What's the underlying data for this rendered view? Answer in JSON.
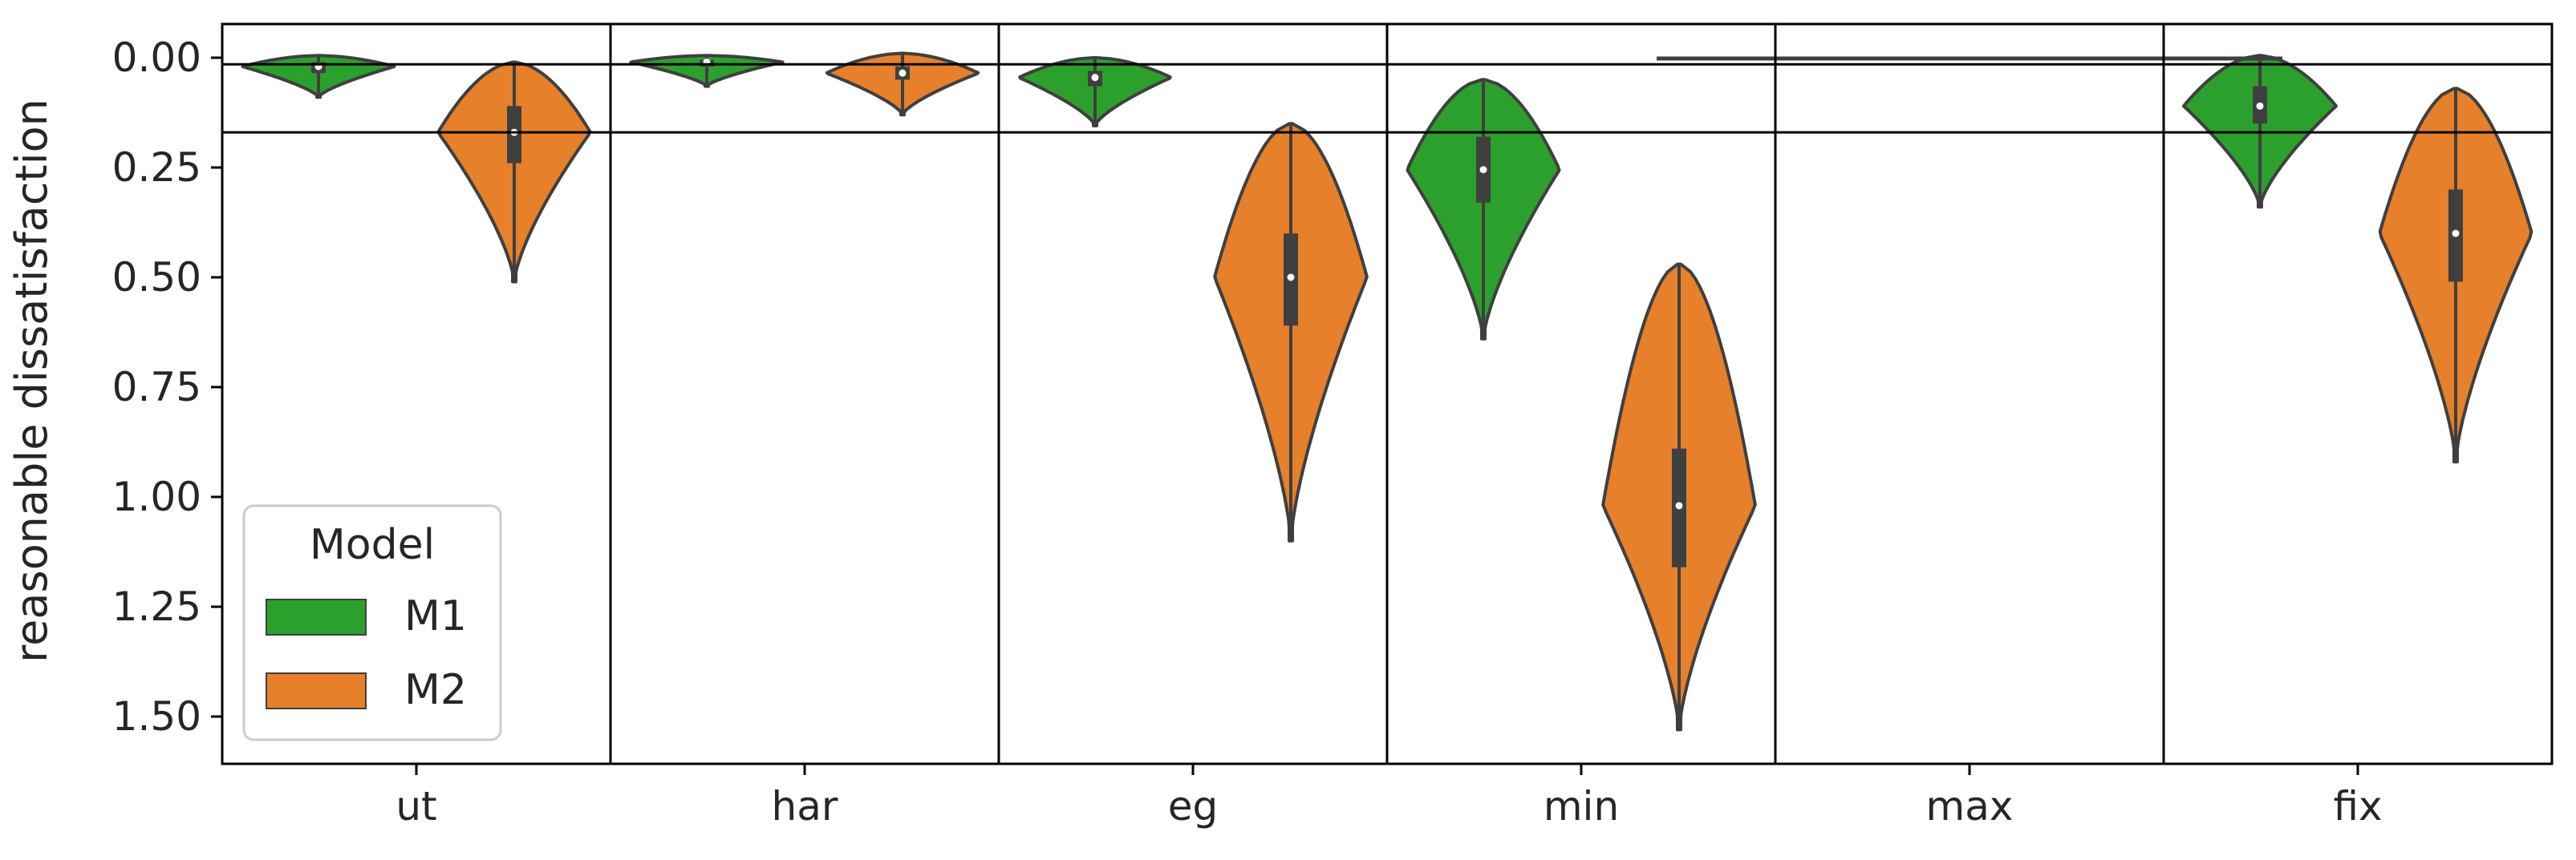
{
  "chart_data": {
    "type": "violin",
    "title": "",
    "xlabel": "",
    "ylabel": "reasonable dissatisfaction",
    "y_inverted": true,
    "ylim": [
      1.6,
      -0.07
    ],
    "y_ticks": [
      "0.00",
      "0.25",
      "0.50",
      "0.75",
      "1.00",
      "1.25",
      "1.50"
    ],
    "categories": [
      "ut",
      "har",
      "eg",
      "min",
      "max",
      "fix"
    ],
    "reference_lines": [
      0.015,
      0.17
    ],
    "legend": {
      "title": "Model",
      "placement": "lower-left"
    },
    "series": [
      {
        "name": "M1",
        "color": "#2ca02c",
        "violins": [
          {
            "min": -0.005,
            "max": 0.09,
            "q1": 0.01,
            "median": 0.02,
            "q3": 0.035
          },
          {
            "min": -0.005,
            "max": 0.065,
            "q1": 0.005,
            "median": 0.01,
            "q3": 0.02
          },
          {
            "min": 0.0,
            "max": 0.155,
            "q1": 0.03,
            "median": 0.045,
            "q3": 0.065
          },
          {
            "min": 0.05,
            "max": 0.64,
            "q1": 0.18,
            "median": 0.255,
            "q3": 0.33
          },
          {
            "min": 0.0,
            "max": 0.0,
            "q1": 0.0,
            "median": 0.0,
            "q3": 0.0
          },
          {
            "min": -0.005,
            "max": 0.34,
            "q1": 0.065,
            "median": 0.11,
            "q3": 0.15
          }
        ]
      },
      {
        "name": "M2",
        "color": "#e6802b",
        "violins": [
          {
            "min": 0.01,
            "max": 0.51,
            "q1": 0.11,
            "median": 0.17,
            "q3": 0.24
          },
          {
            "min": -0.01,
            "max": 0.13,
            "q1": 0.02,
            "median": 0.035,
            "q3": 0.05
          },
          {
            "min": 0.15,
            "max": 1.1,
            "q1": 0.4,
            "median": 0.5,
            "q3": 0.61
          },
          {
            "min": 0.47,
            "max": 1.53,
            "q1": 0.89,
            "median": 1.02,
            "q3": 1.16
          },
          {
            "min": 0.0,
            "max": 0.0,
            "q1": 0.0,
            "median": 0.0,
            "q3": 0.0
          },
          {
            "min": 0.07,
            "max": 0.92,
            "q1": 0.3,
            "median": 0.4,
            "q3": 0.51
          }
        ]
      }
    ]
  }
}
